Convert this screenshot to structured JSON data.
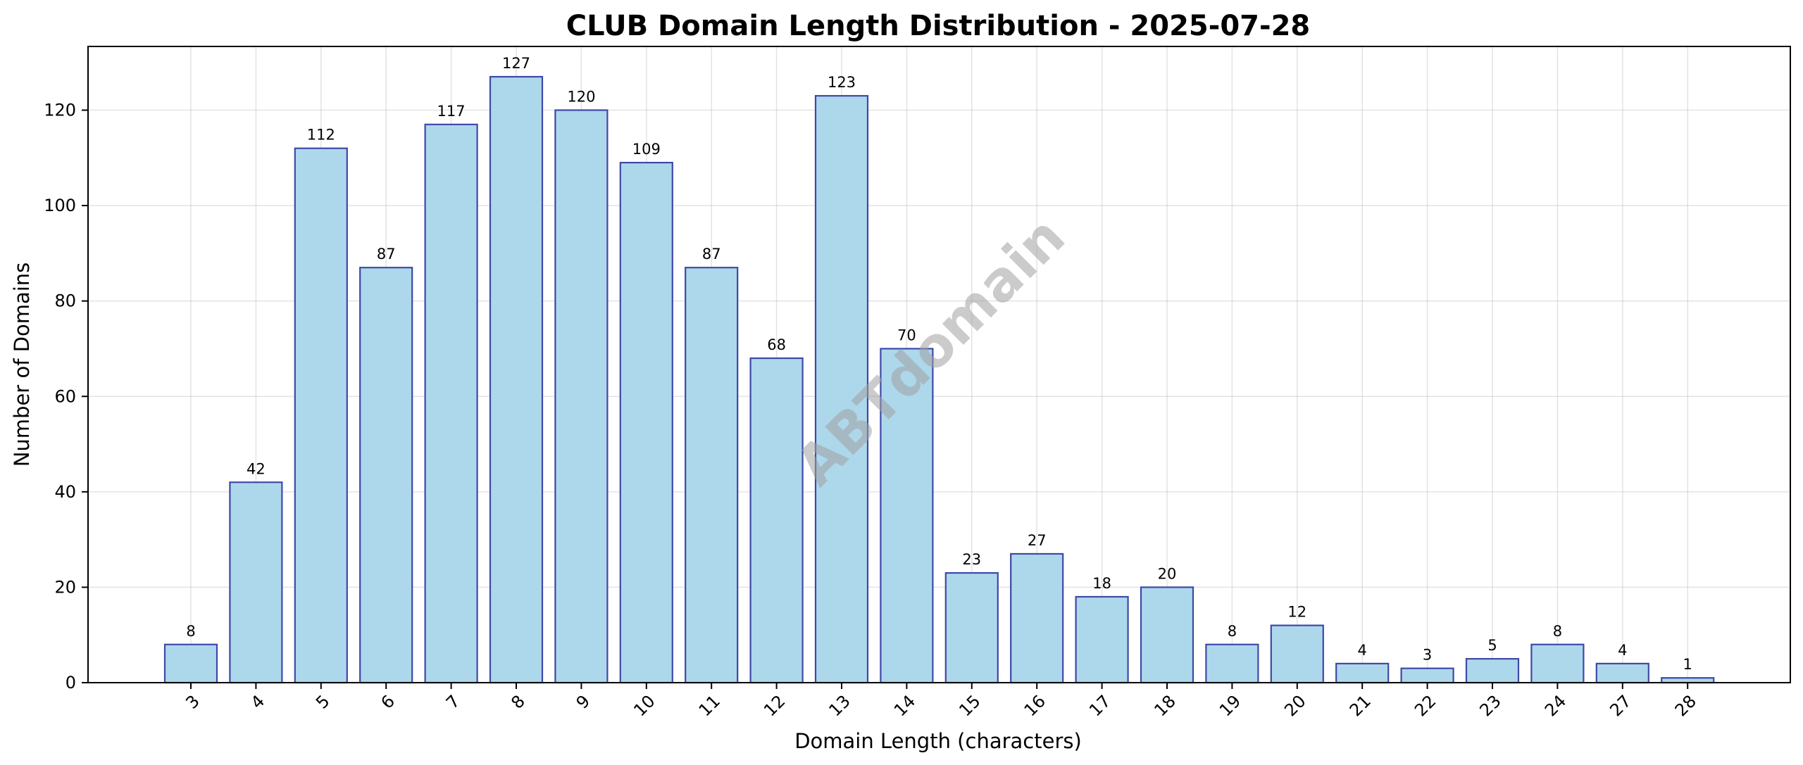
{
  "chart_data": {
    "type": "bar",
    "title": "CLUB Domain Length Distribution - 2025-07-28",
    "xlabel": "Domain Length (characters)",
    "ylabel": "Number of Domains",
    "categories": [
      "3",
      "4",
      "5",
      "6",
      "7",
      "8",
      "9",
      "10",
      "11",
      "12",
      "13",
      "14",
      "15",
      "16",
      "17",
      "18",
      "19",
      "20",
      "21",
      "22",
      "23",
      "24",
      "27",
      "28"
    ],
    "values": [
      8,
      42,
      112,
      87,
      117,
      127,
      120,
      109,
      87,
      68,
      123,
      70,
      23,
      27,
      18,
      20,
      8,
      12,
      4,
      3,
      5,
      8,
      4,
      1
    ],
    "ylim": [
      0,
      133.35
    ],
    "yticks": [
      0,
      20,
      40,
      60,
      80,
      100,
      120
    ],
    "grid": true,
    "bar_color": "#add8eb",
    "bar_edge_color": "#3f48a8",
    "watermark": "ABTdomain"
  }
}
